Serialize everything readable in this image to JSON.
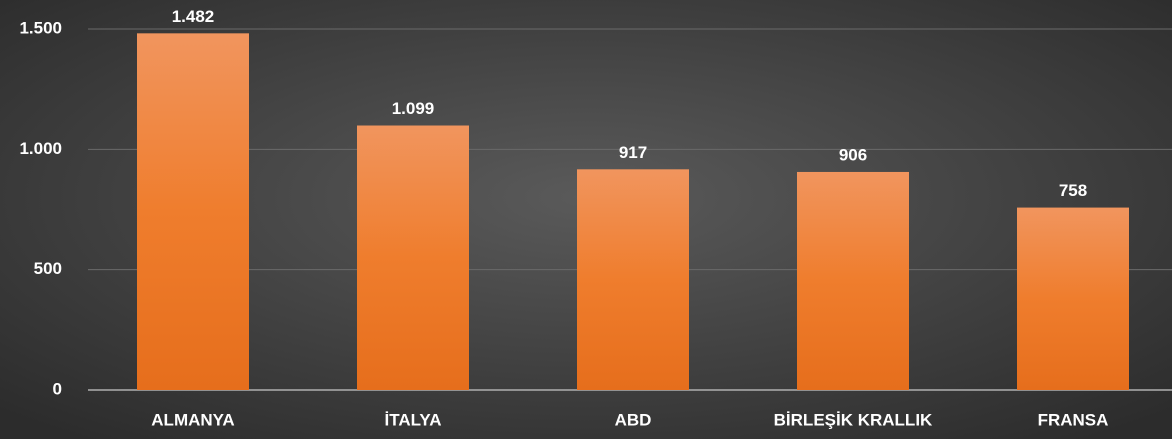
{
  "chart_data": {
    "type": "bar",
    "categories": [
      "ALMANYA",
      "İTALYA",
      "ABD",
      "BİRLEŞİK KRALLIK",
      "FRANSA"
    ],
    "values": [
      1482,
      1099,
      917,
      906,
      758
    ],
    "value_labels": [
      "1.482",
      "1.099",
      "917",
      "906",
      "758"
    ],
    "color": "#ef7d2d",
    "ylim": [
      0,
      1500
    ],
    "yticks": [
      0,
      500,
      {
        "value": 1000,
        "label": "1.000"
      },
      {
        "value": 1500,
        "label": "1.500"
      }
    ],
    "grid": true
  }
}
